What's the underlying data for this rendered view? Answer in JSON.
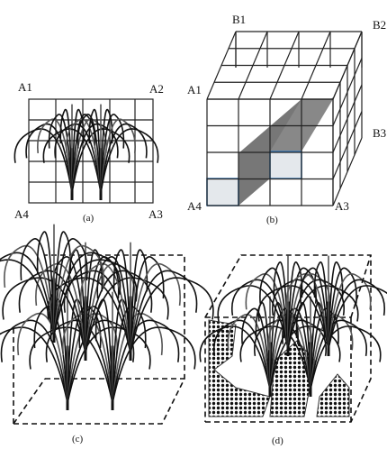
{
  "panels": [
    {
      "caption": "(a)",
      "corner_labels": [
        "A1",
        "A2",
        "A4",
        "A3"
      ]
    },
    {
      "caption": "(b)",
      "corner_labels": [
        "B1",
        "B2",
        "A1",
        "B3",
        "A4",
        "A3"
      ]
    },
    {
      "caption": "(c)"
    },
    {
      "caption": "(d)"
    }
  ]
}
